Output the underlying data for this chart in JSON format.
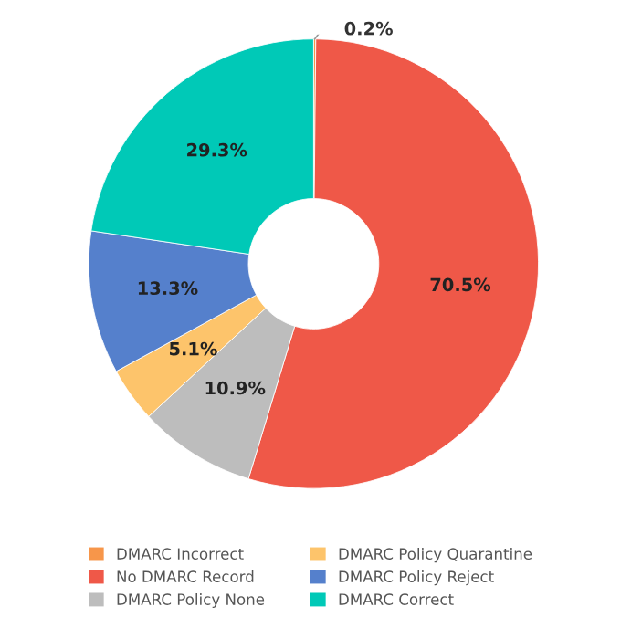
{
  "chart_data": {
    "type": "donut",
    "categories": [
      "DMARC Incorrect",
      "No DMARC Record",
      "DMARC Policy None",
      "DMARC Policy Quarantine",
      "DMARC Policy Reject",
      "DMARC Correct"
    ],
    "values": [
      0.2,
      70.5,
      10.9,
      5.1,
      13.3,
      29.3
    ],
    "value_labels": [
      "0.2%",
      "70.5%",
      "10.9%",
      "5.1%",
      "13.3%",
      "29.3%"
    ],
    "colors": [
      "#f7964a",
      "#ef5848",
      "#bdbdbd",
      "#fdc46b",
      "#5580cc",
      "#00c9b7"
    ],
    "legend": "bottom"
  }
}
